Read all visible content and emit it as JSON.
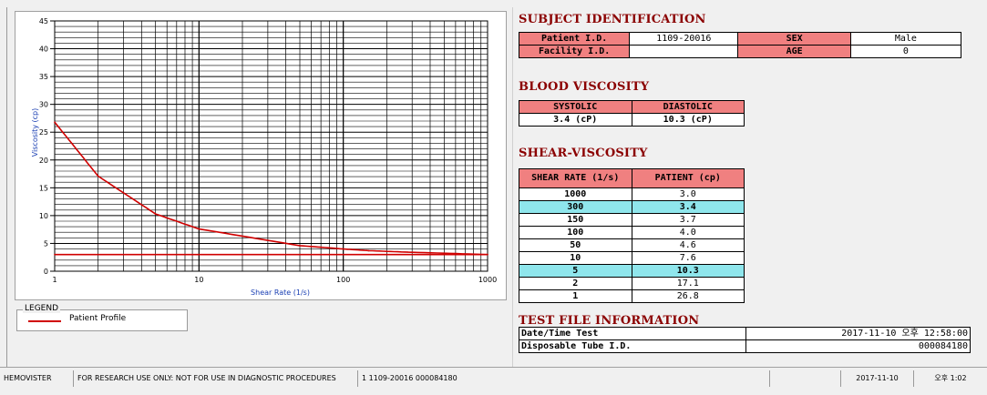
{
  "chart_data": {
    "type": "line",
    "x_scale": "log",
    "xlabel": "Shear Rate (1/s)",
    "ylabel": "Viscosity (cp)",
    "xlim": [
      1,
      1000
    ],
    "ylim": [
      0,
      45
    ],
    "x_tick_labels": [
      "1",
      "10",
      "100",
      "1000"
    ],
    "y_tick_labels": [
      "0",
      "5",
      "10",
      "15",
      "20",
      "25",
      "30",
      "35",
      "40",
      "45"
    ],
    "grid": true,
    "series": [
      {
        "name": "Patient Profile",
        "color": "#d00000",
        "x": [
          1,
          2,
          5,
          10,
          50,
          100,
          150,
          300,
          1000
        ],
        "y": [
          26.8,
          17.1,
          10.3,
          7.6,
          4.6,
          4.0,
          3.7,
          3.4,
          3.0
        ]
      },
      {
        "color": "#d00000",
        "x": [
          1,
          1000
        ],
        "y": [
          3.0,
          3.0
        ]
      }
    ]
  },
  "legend": {
    "title": "LEGEND",
    "entries": [
      {
        "label": "Patient Profile",
        "color": "#d00000"
      }
    ]
  },
  "subject": {
    "title": "SUBJECT IDENTIFICATION",
    "patient_id_label": "Patient I.D.",
    "patient_id_value": "1109-20016",
    "sex_label": "SEX",
    "sex_value": "Male",
    "facility_id_label": "Facility I.D.",
    "facility_id_value": "",
    "age_label": "AGE",
    "age_value": "0"
  },
  "blood_viscosity": {
    "title": "BLOOD VISCOSITY",
    "systolic_label": "SYSTOLIC",
    "diastolic_label": "DIASTOLIC",
    "systolic_value": "3.4 (cP)",
    "diastolic_value": "10.3 (cP)"
  },
  "shear_viscosity": {
    "title": "SHEAR-VISCOSITY",
    "col_rate": "SHEAR RATE (1/s)",
    "col_patient": "PATIENT (cp)",
    "rows": [
      {
        "rate": "1000",
        "value": "3.0",
        "highlight": false
      },
      {
        "rate": "300",
        "value": "3.4",
        "highlight": true
      },
      {
        "rate": "150",
        "value": "3.7",
        "highlight": false
      },
      {
        "rate": "100",
        "value": "4.0",
        "highlight": false
      },
      {
        "rate": "50",
        "value": "4.6",
        "highlight": false
      },
      {
        "rate": "10",
        "value": "7.6",
        "highlight": false
      },
      {
        "rate": "5",
        "value": "10.3",
        "highlight": true
      },
      {
        "rate": "2",
        "value": "17.1",
        "highlight": false
      },
      {
        "rate": "1",
        "value": "26.8",
        "highlight": false
      }
    ],
    "highlight_color": "#8fe6ec",
    "header_color": "#f08080"
  },
  "test_file": {
    "title": "TEST FILE INFORMATION",
    "datetime_label": "Date/Time Test",
    "datetime_value": "2017-11-10  오후 12:58:00",
    "tube_label": "Disposable Tube I.D.",
    "tube_value": "000084180"
  },
  "status_bar": {
    "app": "HEMOVISTER",
    "notice": "FOR RESEARCH USE ONLY: NOT FOR USE IN DIAGNOSTIC PROCEDURES",
    "info": "1  1109-20016  000084180",
    "empty": "",
    "date": "2017-11-10",
    "time": "오후 1:02"
  }
}
